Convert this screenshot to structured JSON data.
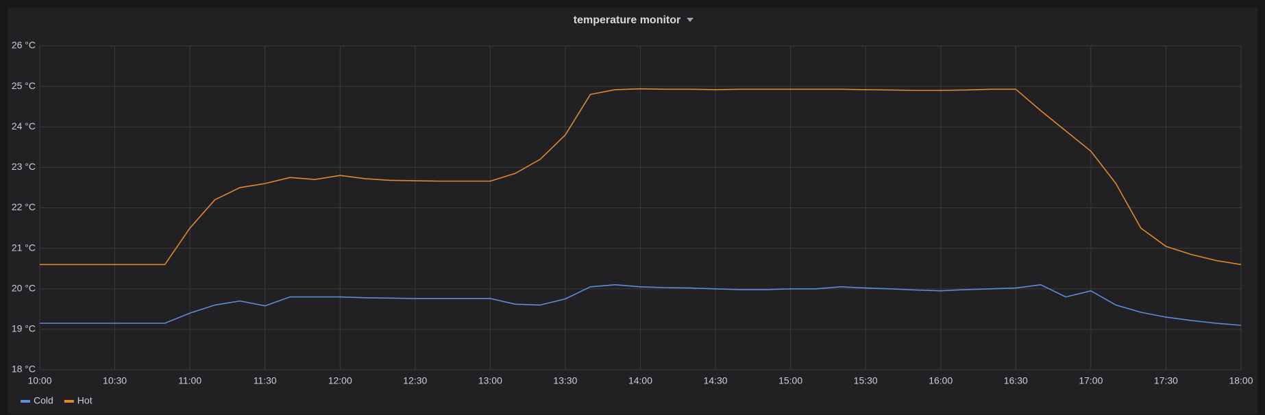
{
  "chart_data": {
    "type": "line",
    "title": "temperature monitor",
    "x": [
      "10:00",
      "10:10",
      "10:20",
      "10:30",
      "10:40",
      "10:50",
      "11:00",
      "11:10",
      "11:20",
      "11:30",
      "11:40",
      "11:50",
      "12:00",
      "12:10",
      "12:20",
      "12:30",
      "12:40",
      "12:50",
      "13:00",
      "13:10",
      "13:20",
      "13:30",
      "13:40",
      "13:50",
      "14:00",
      "14:10",
      "14:20",
      "14:30",
      "14:40",
      "14:50",
      "15:00",
      "15:10",
      "15:20",
      "15:30",
      "15:40",
      "15:50",
      "16:00",
      "16:10",
      "16:20",
      "16:30",
      "16:40",
      "16:50",
      "17:00",
      "17:10",
      "17:20",
      "17:30",
      "17:40",
      "17:50",
      "18:00"
    ],
    "series": [
      {
        "name": "Cold",
        "color": "#5b8fd8",
        "values": [
          19.15,
          19.15,
          19.15,
          19.15,
          19.15,
          19.15,
          19.4,
          19.6,
          19.7,
          19.58,
          19.8,
          19.8,
          19.8,
          19.78,
          19.77,
          19.76,
          19.76,
          19.76,
          19.76,
          19.62,
          19.6,
          19.75,
          20.05,
          20.1,
          20.05,
          20.03,
          20.02,
          20.0,
          19.98,
          19.98,
          20.0,
          20.0,
          20.05,
          20.02,
          20.0,
          19.97,
          19.95,
          19.98,
          20.0,
          20.02,
          20.1,
          19.8,
          19.95,
          19.6,
          19.42,
          19.3,
          19.22,
          19.15,
          19.1
        ]
      },
      {
        "name": "Hot",
        "color": "#e0892e",
        "values": [
          20.6,
          20.6,
          20.6,
          20.6,
          20.6,
          20.6,
          21.5,
          22.2,
          22.5,
          22.6,
          22.75,
          22.7,
          22.8,
          22.72,
          22.68,
          22.67,
          22.66,
          22.66,
          22.66,
          22.85,
          23.2,
          23.8,
          24.8,
          24.92,
          24.94,
          24.93,
          24.93,
          24.92,
          24.93,
          24.93,
          24.93,
          24.93,
          24.93,
          24.92,
          24.91,
          24.9,
          24.9,
          24.91,
          24.93,
          24.93,
          24.4,
          23.9,
          23.4,
          22.6,
          21.5,
          21.05,
          20.85,
          20.7,
          20.6
        ]
      }
    ],
    "xlim": [
      "10:00",
      "18:00"
    ],
    "xticks": [
      "10:00",
      "10:30",
      "11:00",
      "11:30",
      "12:00",
      "12:30",
      "13:00",
      "13:30",
      "14:00",
      "14:30",
      "15:00",
      "15:30",
      "16:00",
      "16:30",
      "17:00",
      "17:30",
      "18:00"
    ],
    "ylim": [
      18,
      26
    ],
    "yticks": [
      {
        "value": 18,
        "label": "18 °C"
      },
      {
        "value": 19,
        "label": "19 °C"
      },
      {
        "value": 20,
        "label": "20 °C"
      },
      {
        "value": 21,
        "label": "21 °C"
      },
      {
        "value": 22,
        "label": "22 °C"
      },
      {
        "value": 23,
        "label": "23 °C"
      },
      {
        "value": 24,
        "label": "24 °C"
      },
      {
        "value": 25,
        "label": "25 °C"
      },
      {
        "value": 26,
        "label": "26 °C"
      }
    ],
    "grid": true,
    "legend": "bottom-left"
  }
}
